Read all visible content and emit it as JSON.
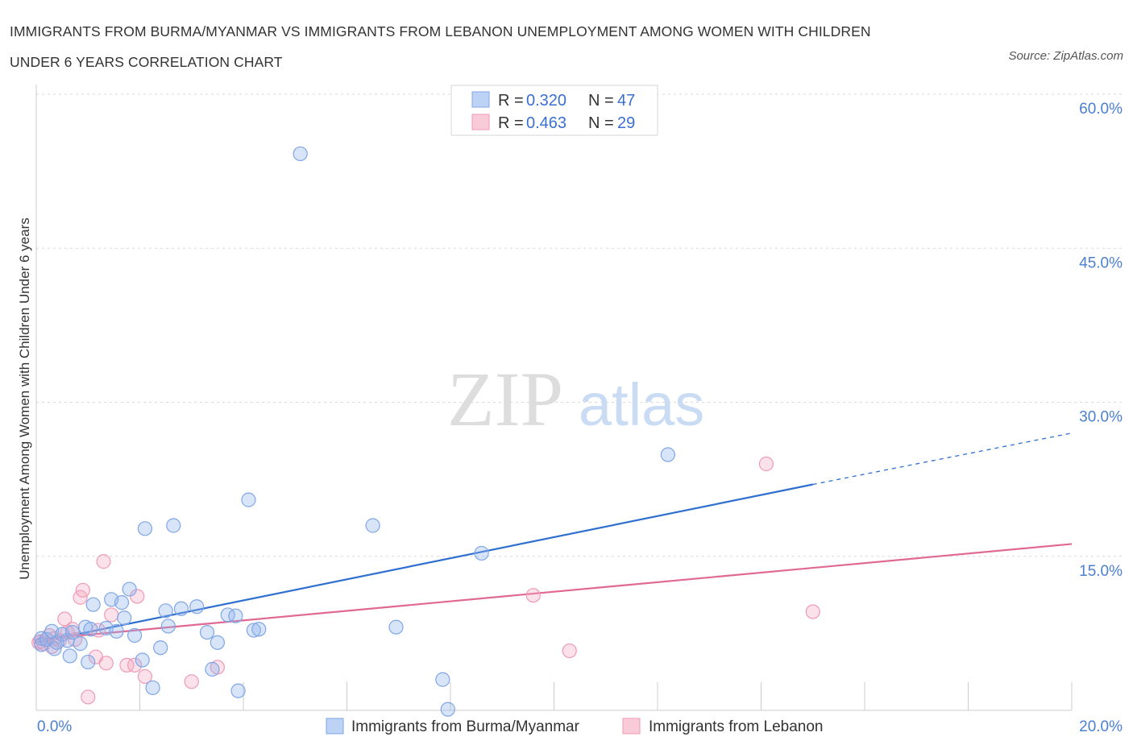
{
  "header": {
    "title_line1": "IMMIGRANTS FROM BURMA/MYANMAR VS IMMIGRANTS FROM LEBANON UNEMPLOYMENT AMONG WOMEN WITH CHILDREN",
    "title_line2": "UNDER 6 YEARS CORRELATION CHART",
    "source": "Source: ZipAtlas.com"
  },
  "watermark": {
    "zip": "ZIP",
    "atlas": "atlas"
  },
  "colors": {
    "series1": "#8fb3ea",
    "series1_line": "#2f6fd0",
    "series2": "#f4a8c0",
    "series2_line": "#e06893",
    "tick_text": "#4a7fd1",
    "grid": "#d9d9d9"
  },
  "legend": {
    "rows": [
      {
        "r_label": "R = ",
        "r_value": "0.320",
        "n_label": "N = ",
        "n_value": "47"
      },
      {
        "r_label": "R = ",
        "r_value": "0.463",
        "n_label": "N = ",
        "n_value": "29"
      }
    ]
  },
  "chart_data": {
    "type": "scatter",
    "title": "IMMIGRANTS FROM BURMA/MYANMAR VS IMMIGRANTS FROM LEBANON UNEMPLOYMENT AMONG WOMEN WITH CHILDREN UNDER 6 YEARS CORRELATION CHART",
    "xlabel": "",
    "ylabel": "Unemployment Among Women with Children Under 6 years",
    "xlim": [
      0,
      20
    ],
    "ylim": [
      0,
      60
    ],
    "x_tick_labels": [
      "0.0%",
      "20.0%"
    ],
    "y_ticks": [
      15,
      30,
      45,
      60
    ],
    "y_tick_labels": [
      "15.0%",
      "30.0%",
      "45.0%",
      "60.0%"
    ],
    "grid": true,
    "legend_position": "top-center",
    "series": [
      {
        "name": "Immigrants from Burma/Myanmar",
        "trend": {
          "x": [
            0,
            15.0
          ],
          "y": [
            6.6,
            22.0
          ],
          "dashed_to": [
            20,
            27.0
          ]
        },
        "points": [
          [
            0.1,
            7.0
          ],
          [
            0.1,
            6.4
          ],
          [
            0.2,
            6.9
          ],
          [
            0.3,
            7.7
          ],
          [
            0.35,
            6.0
          ],
          [
            0.4,
            6.6
          ],
          [
            0.5,
            7.4
          ],
          [
            0.6,
            6.8
          ],
          [
            0.65,
            5.3
          ],
          [
            0.7,
            7.6
          ],
          [
            0.85,
            6.5
          ],
          [
            0.95,
            8.1
          ],
          [
            1.0,
            4.7
          ],
          [
            1.05,
            7.9
          ],
          [
            1.1,
            10.3
          ],
          [
            1.35,
            8.0
          ],
          [
            1.45,
            10.8
          ],
          [
            1.55,
            7.7
          ],
          [
            1.65,
            10.5
          ],
          [
            1.7,
            9.0
          ],
          [
            1.8,
            11.8
          ],
          [
            1.9,
            7.3
          ],
          [
            2.05,
            4.9
          ],
          [
            2.1,
            17.7
          ],
          [
            2.25,
            2.2
          ],
          [
            2.4,
            6.1
          ],
          [
            2.5,
            9.7
          ],
          [
            2.55,
            8.2
          ],
          [
            2.65,
            18.0
          ],
          [
            2.8,
            9.9
          ],
          [
            3.1,
            10.1
          ],
          [
            3.3,
            7.6
          ],
          [
            3.4,
            4.0
          ],
          [
            3.5,
            6.6
          ],
          [
            3.7,
            9.3
          ],
          [
            3.85,
            9.2
          ],
          [
            3.9,
            1.9
          ],
          [
            4.1,
            20.5
          ],
          [
            4.2,
            7.8
          ],
          [
            4.3,
            7.9
          ],
          [
            5.1,
            54.2
          ],
          [
            6.5,
            18.0
          ],
          [
            6.95,
            8.1
          ],
          [
            7.85,
            3.0
          ],
          [
            7.95,
            0.1
          ],
          [
            8.6,
            15.3
          ],
          [
            12.2,
            24.9
          ]
        ]
      },
      {
        "name": "Immigrants from Lebanon",
        "trend": {
          "x": [
            0,
            20
          ],
          "y": [
            6.9,
            16.2
          ]
        },
        "points": [
          [
            0.05,
            6.6
          ],
          [
            0.15,
            6.5
          ],
          [
            0.25,
            7.3
          ],
          [
            0.35,
            7.0
          ],
          [
            0.45,
            6.8
          ],
          [
            0.55,
            8.9
          ],
          [
            0.6,
            7.6
          ],
          [
            0.7,
            7.9
          ],
          [
            0.75,
            6.9
          ],
          [
            0.85,
            11.0
          ],
          [
            0.9,
            11.7
          ],
          [
            1.0,
            1.3
          ],
          [
            1.15,
            5.2
          ],
          [
            1.2,
            7.8
          ],
          [
            1.3,
            14.5
          ],
          [
            1.35,
            4.6
          ],
          [
            1.45,
            9.3
          ],
          [
            1.75,
            4.4
          ],
          [
            1.9,
            4.4
          ],
          [
            1.95,
            11.1
          ],
          [
            2.1,
            3.3
          ],
          [
            3.0,
            2.8
          ],
          [
            3.5,
            4.2
          ],
          [
            9.6,
            11.2
          ],
          [
            10.3,
            5.8
          ],
          [
            14.1,
            24.0
          ],
          [
            15.0,
            9.6
          ],
          [
            0.08,
            6.7
          ],
          [
            0.3,
            6.2
          ]
        ]
      }
    ]
  }
}
